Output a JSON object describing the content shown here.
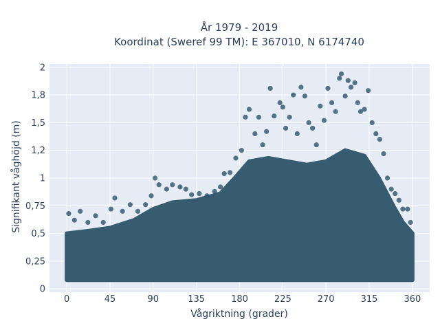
{
  "chart_data": {
    "type": "scatter",
    "title_lines": [
      "År 1979 - 2019",
      "Koordinat (Sweref 99 TM): E 367010, N 6174740"
    ],
    "xlabel": "Vågriktning (grader)",
    "ylabel": "Signifikant våghöjd (m)",
    "xlim": [
      -18,
      378
    ],
    "ylim": [
      -0.03,
      2.03
    ],
    "x_ticks": [
      0,
      45,
      90,
      135,
      180,
      225,
      270,
      315,
      360
    ],
    "x_tick_labels": [
      "0",
      "45",
      "90",
      "135",
      "180",
      "225",
      "270",
      "315",
      "360"
    ],
    "y_ticks": [
      0,
      0.25,
      0.5,
      0.75,
      1,
      1.25,
      1.5,
      1.75,
      2
    ],
    "y_tick_labels": [
      "0",
      "0,25",
      "0,5",
      "0,75",
      "1",
      "1,2",
      "1,5",
      "1,8",
      "2"
    ],
    "grid": true,
    "marker_color": "#2e5468",
    "plot_background": "#e5ecf6",
    "dense_band": [
      {
        "x": 0,
        "y_low": 0.08,
        "y_high": 0.5
      },
      {
        "x": 20,
        "y_low": 0.08,
        "y_high": 0.52
      },
      {
        "x": 45,
        "y_low": 0.08,
        "y_high": 0.55
      },
      {
        "x": 70,
        "y_low": 0.08,
        "y_high": 0.62
      },
      {
        "x": 90,
        "y_low": 0.08,
        "y_high": 0.72
      },
      {
        "x": 110,
        "y_low": 0.08,
        "y_high": 0.78
      },
      {
        "x": 135,
        "y_low": 0.08,
        "y_high": 0.8
      },
      {
        "x": 160,
        "y_low": 0.08,
        "y_high": 0.86
      },
      {
        "x": 175,
        "y_low": 0.08,
        "y_high": 1.0
      },
      {
        "x": 190,
        "y_low": 0.08,
        "y_high": 1.15
      },
      {
        "x": 210,
        "y_low": 0.08,
        "y_high": 1.18
      },
      {
        "x": 230,
        "y_low": 0.08,
        "y_high": 1.15
      },
      {
        "x": 250,
        "y_low": 0.08,
        "y_high": 1.12
      },
      {
        "x": 270,
        "y_low": 0.08,
        "y_high": 1.15
      },
      {
        "x": 290,
        "y_low": 0.08,
        "y_high": 1.25
      },
      {
        "x": 310,
        "y_low": 0.08,
        "y_high": 1.2
      },
      {
        "x": 325,
        "y_low": 0.08,
        "y_high": 1.0
      },
      {
        "x": 340,
        "y_low": 0.08,
        "y_high": 0.75
      },
      {
        "x": 350,
        "y_low": 0.08,
        "y_high": 0.6
      },
      {
        "x": 360,
        "y_low": 0.08,
        "y_high": 0.5
      }
    ],
    "points": [
      {
        "x": 2,
        "y": 0.68
      },
      {
        "x": 8,
        "y": 0.62
      },
      {
        "x": 14,
        "y": 0.7
      },
      {
        "x": 22,
        "y": 0.6
      },
      {
        "x": 30,
        "y": 0.66
      },
      {
        "x": 38,
        "y": 0.6
      },
      {
        "x": 46,
        "y": 0.72
      },
      {
        "x": 50,
        "y": 0.82
      },
      {
        "x": 58,
        "y": 0.7
      },
      {
        "x": 66,
        "y": 0.76
      },
      {
        "x": 74,
        "y": 0.7
      },
      {
        "x": 82,
        "y": 0.76
      },
      {
        "x": 88,
        "y": 0.84
      },
      {
        "x": 92,
        "y": 1.0
      },
      {
        "x": 96,
        "y": 0.94
      },
      {
        "x": 104,
        "y": 0.9
      },
      {
        "x": 110,
        "y": 0.94
      },
      {
        "x": 118,
        "y": 0.92
      },
      {
        "x": 124,
        "y": 0.9
      },
      {
        "x": 130,
        "y": 0.85
      },
      {
        "x": 138,
        "y": 0.86
      },
      {
        "x": 146,
        "y": 0.84
      },
      {
        "x": 154,
        "y": 0.88
      },
      {
        "x": 160,
        "y": 0.92
      },
      {
        "x": 164,
        "y": 1.04
      },
      {
        "x": 170,
        "y": 1.05
      },
      {
        "x": 176,
        "y": 1.18
      },
      {
        "x": 182,
        "y": 1.25
      },
      {
        "x": 186,
        "y": 1.55
      },
      {
        "x": 190,
        "y": 1.62
      },
      {
        "x": 196,
        "y": 1.4
      },
      {
        "x": 200,
        "y": 1.55
      },
      {
        "x": 204,
        "y": 1.3
      },
      {
        "x": 208,
        "y": 1.42
      },
      {
        "x": 212,
        "y": 1.81
      },
      {
        "x": 216,
        "y": 1.56
      },
      {
        "x": 222,
        "y": 1.68
      },
      {
        "x": 225,
        "y": 1.64
      },
      {
        "x": 228,
        "y": 1.45
      },
      {
        "x": 232,
        "y": 1.55
      },
      {
        "x": 236,
        "y": 1.75
      },
      {
        "x": 240,
        "y": 1.4
      },
      {
        "x": 244,
        "y": 1.82
      },
      {
        "x": 248,
        "y": 1.74
      },
      {
        "x": 252,
        "y": 1.5
      },
      {
        "x": 256,
        "y": 1.45
      },
      {
        "x": 260,
        "y": 1.3
      },
      {
        "x": 264,
        "y": 1.65
      },
      {
        "x": 268,
        "y": 1.52
      },
      {
        "x": 272,
        "y": 1.81
      },
      {
        "x": 276,
        "y": 1.68
      },
      {
        "x": 280,
        "y": 1.6
      },
      {
        "x": 284,
        "y": 1.9
      },
      {
        "x": 286,
        "y": 1.94
      },
      {
        "x": 290,
        "y": 1.74
      },
      {
        "x": 293,
        "y": 1.88
      },
      {
        "x": 296,
        "y": 1.82
      },
      {
        "x": 300,
        "y": 1.86
      },
      {
        "x": 303,
        "y": 1.68
      },
      {
        "x": 306,
        "y": 1.6
      },
      {
        "x": 310,
        "y": 1.62
      },
      {
        "x": 314,
        "y": 1.79
      },
      {
        "x": 318,
        "y": 1.5
      },
      {
        "x": 322,
        "y": 1.4
      },
      {
        "x": 326,
        "y": 1.35
      },
      {
        "x": 330,
        "y": 1.22
      },
      {
        "x": 334,
        "y": 1.0
      },
      {
        "x": 338,
        "y": 0.9
      },
      {
        "x": 342,
        "y": 0.86
      },
      {
        "x": 346,
        "y": 0.8
      },
      {
        "x": 350,
        "y": 0.72
      },
      {
        "x": 355,
        "y": 0.72
      },
      {
        "x": 358,
        "y": 0.6
      }
    ]
  }
}
